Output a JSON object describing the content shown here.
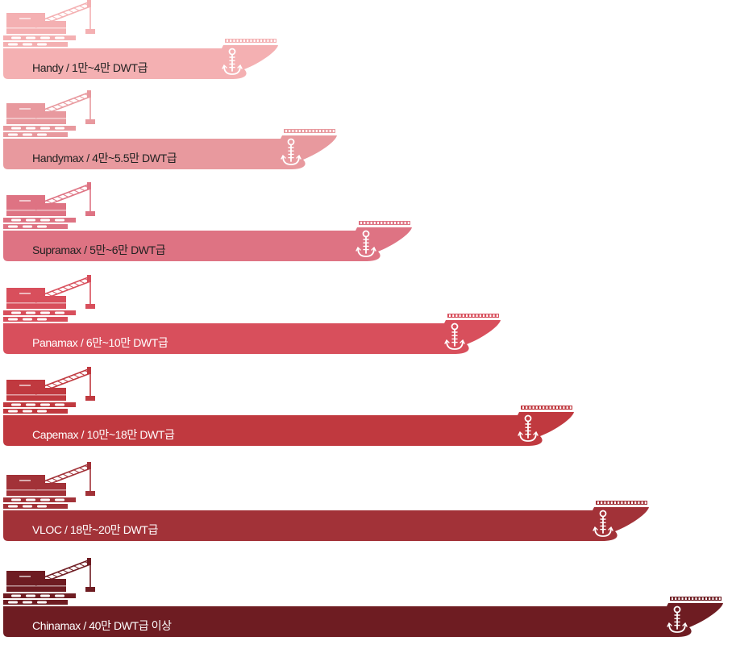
{
  "ships": [
    {
      "label": "Handy / 1만~4만 DWT급",
      "color": "#f4b0b2",
      "text_tone": "dark"
    },
    {
      "label": "Handymax / 4만~5.5만 DWT급",
      "color": "#e8999e",
      "text_tone": "dark"
    },
    {
      "label": "Supramax / 5만~6만 DWT급",
      "color": "#de7383",
      "text_tone": "dark"
    },
    {
      "label": "Panamax / 6만~10만 DWT급",
      "color": "#d84f5c",
      "text_tone": "light"
    },
    {
      "label": "Capemax / 10만~18만 DWT급",
      "color": "#c0393f",
      "text_tone": "light"
    },
    {
      "label": "VLOC / 18만~20만 DWT급",
      "color": "#a23238",
      "text_tone": "light"
    },
    {
      "label": "Chinamax / 40만 DWT급 이상",
      "color": "#6e1c22",
      "text_tone": "light"
    }
  ],
  "icons": {
    "ship": "cargo-ship-icon",
    "crane": "crane-icon",
    "anchor": "anchor-icon"
  }
}
